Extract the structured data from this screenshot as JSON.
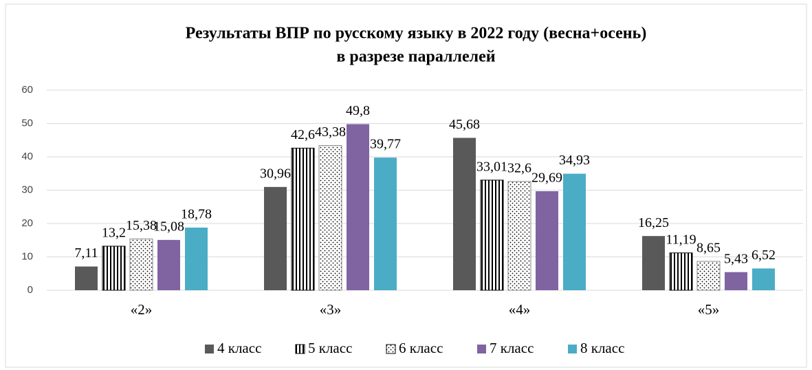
{
  "chart_data": {
    "type": "bar",
    "title": [
      "Результаты  ВПР по русскому языку в 2022 году (весна+осень)",
      "в разрезе параллелей"
    ],
    "categories": [
      "«2»",
      "«3»",
      "«4»",
      "«5»"
    ],
    "series": [
      {
        "name": "4 класс",
        "color": "#595959",
        "values": [
          7.11,
          30.96,
          45.68,
          16.25
        ],
        "value_labels": [
          "7,11",
          "30,96",
          "45,68",
          "16,25"
        ]
      },
      {
        "name": "5 класс",
        "color": "#000000",
        "pattern": "stripes",
        "values": [
          13.2,
          42.6,
          33.01,
          11.19
        ],
        "value_labels": [
          "13,2",
          "42,6",
          "33,01",
          "11,19"
        ]
      },
      {
        "name": "6 класс",
        "color": "#000000",
        "pattern": "dots",
        "values": [
          15.38,
          43.38,
          32.6,
          8.65
        ],
        "value_labels": [
          "15,38",
          "43,38",
          "32,6",
          "8,65"
        ]
      },
      {
        "name": "7 класс",
        "color": "#8064a2",
        "values": [
          15.08,
          49.8,
          29.69,
          5.43
        ],
        "value_labels": [
          "15,08",
          "49,8",
          "29,69",
          "5,43"
        ]
      },
      {
        "name": "8 класс",
        "color": "#4bacc6",
        "values": [
          18.78,
          39.77,
          34.93,
          6.52
        ],
        "value_labels": [
          "18,78",
          "39,77",
          "34,93",
          "6,52"
        ]
      }
    ],
    "ylim": [
      0,
      60
    ],
    "yticks": [
      0,
      10,
      20,
      30,
      40,
      50,
      60
    ],
    "grid": true,
    "legend": "bottom"
  }
}
